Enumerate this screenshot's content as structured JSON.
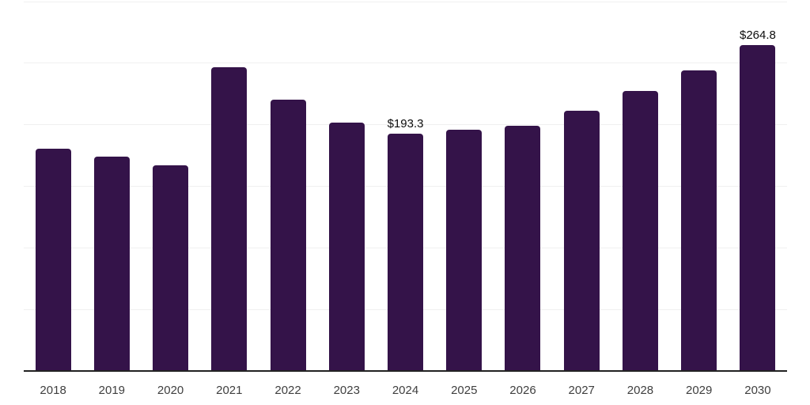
{
  "chart_data": {
    "type": "bar",
    "title": "",
    "xlabel": "",
    "ylabel": "",
    "categories": [
      "2018",
      "2019",
      "2020",
      "2021",
      "2022",
      "2023",
      "2024",
      "2025",
      "2026",
      "2027",
      "2028",
      "2029",
      "2030"
    ],
    "values": [
      181.2,
      174.3,
      167.3,
      246.8,
      220.9,
      202.0,
      193.3,
      196.5,
      199.5,
      212.0,
      227.5,
      244.5,
      264.8
    ],
    "value_labels": [
      "",
      "",
      "",
      "",
      "",
      "",
      "$193.3",
      "",
      "",
      "",
      "",
      "",
      "$264.8"
    ],
    "ylim": [
      0,
      300
    ],
    "gridline_step": 50,
    "grid": true,
    "legend": false,
    "colors": {
      "bar": "#341349",
      "gridline": "#f0f0f0",
      "axis_line": "#222222",
      "value_label_text": "#0d0d0d",
      "tick_label_text": "#3f3f3f",
      "background": "#ffffff"
    }
  }
}
